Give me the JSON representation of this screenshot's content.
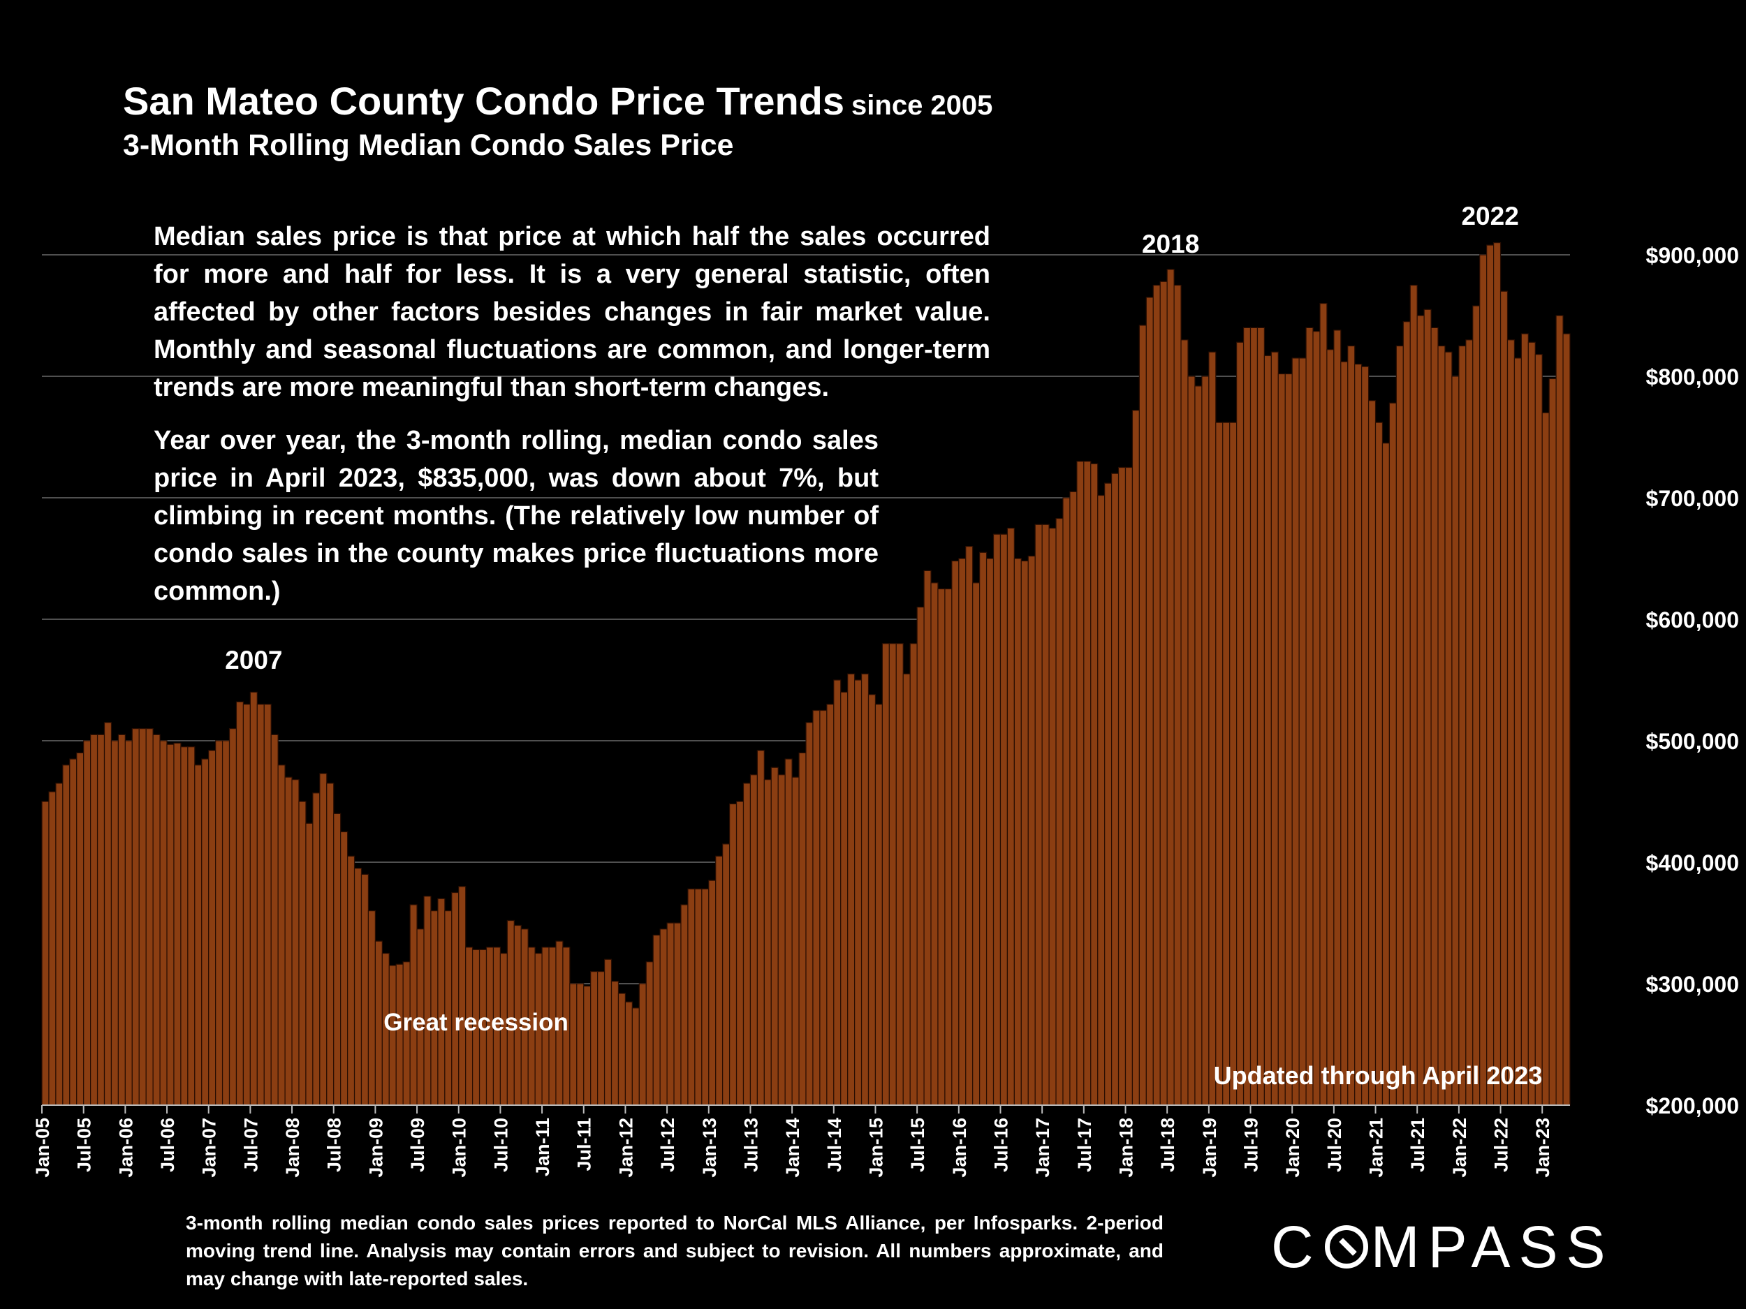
{
  "header": {
    "title": "San Mateo County Condo Price Trends",
    "title_suffix": "since 2005",
    "subtitle": "3-Month Rolling Median Condo Sales Price"
  },
  "notes": {
    "p1": "Median sales price is that price at which half the sales occurred for more and half for less. It is a very general statistic, often affected by other factors besides changes in fair market value. Monthly and seasonal fluctuations are common, and longer-term trends are more meaningful than short-term changes.",
    "p2": "Year over year, the 3-month rolling, median condo sales price in April 2023, $835,000, was down about 7%, but climbing in recent months. (The relatively low number of condo sales in the county makes price fluctuations more common.)"
  },
  "footnote": "3-month rolling median condo sales prices reported to NorCal MLS Alliance, per Infosparks. 2-period moving trend line. Analysis may contain errors and subject to revision. All numbers approximate, and may change with late-reported sales.",
  "logo": {
    "before": "C",
    "after": "MPASS"
  },
  "chart_data": {
    "type": "bar",
    "title": "San Mateo County Condo Price Trends since 2005",
    "subtitle": "3-Month Rolling Median Condo Sales Price",
    "start": "Jan-05",
    "end": "Apr-23",
    "x_tick_labels": [
      "Jan-05",
      "Jul-05",
      "Jan-06",
      "Jul-06",
      "Jan-07",
      "Jul-07",
      "Jan-08",
      "Jul-08",
      "Jan-09",
      "Jul-09",
      "Jan-10",
      "Jul-10",
      "Jan-11",
      "Jul-11",
      "Jan-12",
      "Jul-12",
      "Jan-13",
      "Jul-13",
      "Jan-14",
      "Jul-14",
      "Jan-15",
      "Jul-15",
      "Jan-16",
      "Jul-16",
      "Jan-17",
      "Jul-17",
      "Jan-18",
      "Jul-18",
      "Jan-19",
      "Jul-19",
      "Jan-20",
      "Jul-20",
      "Jan-21",
      "Jul-21",
      "Jan-22",
      "Jul-22",
      "Jan-23"
    ],
    "y_tick_labels": [
      "$200,000",
      "$300,000",
      "$400,000",
      "$500,000",
      "$600,000",
      "$700,000",
      "$800,000",
      "$900,000"
    ],
    "ylim": [
      200000,
      900000
    ],
    "y_step": 100000,
    "grid": true,
    "bar_color": "#8B3E12",
    "bar_edge_color": "#2a0e02",
    "annotations": [
      {
        "text": "2007",
        "at": "Jul-07"
      },
      {
        "text": "2018",
        "at": "Jul-18"
      },
      {
        "text": "2022",
        "at": "May-22"
      },
      {
        "text": "Great recession",
        "at": "Mar-10"
      }
    ],
    "callout": "Updated through April 2023",
    "values": [
      450000,
      458000,
      465000,
      480000,
      485000,
      490000,
      500000,
      505000,
      505000,
      515000,
      500000,
      505000,
      500000,
      510000,
      510000,
      510000,
      505000,
      500000,
      497000,
      498000,
      495000,
      495000,
      480000,
      485000,
      492000,
      500000,
      500000,
      510000,
      532000,
      530000,
      540000,
      530000,
      530000,
      505000,
      480000,
      470000,
      468000,
      450000,
      432000,
      457000,
      473000,
      465000,
      440000,
      425000,
      405000,
      395000,
      390000,
      360000,
      335000,
      325000,
      315000,
      316000,
      318000,
      365000,
      345000,
      372000,
      360000,
      370000,
      360000,
      375000,
      380000,
      330000,
      328000,
      328000,
      330000,
      330000,
      325000,
      352000,
      348000,
      345000,
      330000,
      325000,
      330000,
      330000,
      335000,
      330000,
      300000,
      300000,
      298000,
      310000,
      310000,
      320000,
      302000,
      292000,
      285000,
      280000,
      300000,
      318000,
      340000,
      345000,
      350000,
      350000,
      365000,
      378000,
      378000,
      378000,
      385000,
      405000,
      415000,
      448000,
      450000,
      465000,
      472000,
      492000,
      468000,
      478000,
      472000,
      485000,
      470000,
      490000,
      515000,
      525000,
      525000,
      530000,
      550000,
      540000,
      555000,
      550000,
      555000,
      538000,
      530000,
      580000,
      580000,
      580000,
      555000,
      580000,
      610000,
      640000,
      630000,
      625000,
      625000,
      648000,
      650000,
      660000,
      630000,
      655000,
      650000,
      670000,
      670000,
      675000,
      650000,
      648000,
      652000,
      678000,
      678000,
      675000,
      683000,
      700000,
      705000,
      730000,
      730000,
      728000,
      702000,
      712000,
      720000,
      725000,
      725000,
      772000,
      842000,
      865000,
      875000,
      878000,
      888000,
      875000,
      830000,
      800000,
      792000,
      800000,
      820000,
      762000,
      762000,
      762000,
      828000,
      840000,
      840000,
      840000,
      817000,
      820000,
      802000,
      802000,
      815000,
      815000,
      840000,
      837000,
      860000,
      822000,
      838000,
      812000,
      825000,
      810000,
      808000,
      780000,
      762000,
      745000,
      778000,
      825000,
      845000,
      875000,
      850000,
      855000,
      840000,
      825000,
      820000,
      800000,
      825000,
      830000,
      858000,
      900000,
      908000,
      910000,
      870000,
      830000,
      815000,
      835000,
      828000,
      818000,
      770000,
      798000,
      850000,
      835000
    ]
  }
}
